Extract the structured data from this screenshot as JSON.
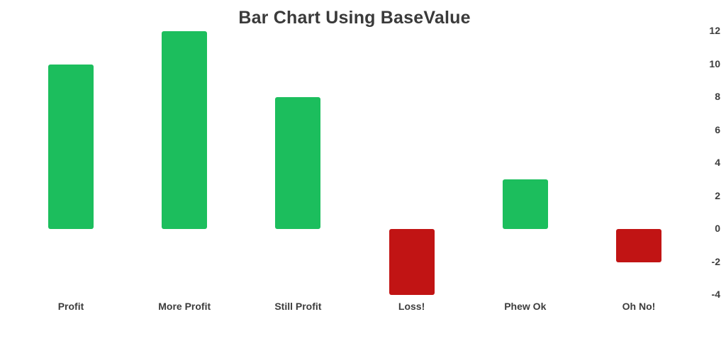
{
  "chart_data": {
    "type": "bar",
    "title": "Bar Chart Using BaseValue",
    "categories": [
      "Profit",
      "More Profit",
      "Still Profit",
      "Loss!",
      "Phew Ok",
      "Oh No!"
    ],
    "values": [
      10,
      12,
      8,
      -4,
      3,
      -2
    ],
    "base_value": 0,
    "xlabel": "",
    "ylabel": "",
    "ylim": [
      -4,
      12
    ],
    "yticks": [
      12,
      10,
      8,
      6,
      4,
      2,
      0,
      -2,
      -4
    ],
    "yaxis_position": "right",
    "grid": false,
    "legend_position": "none",
    "positive_color": "#1cbe5d",
    "negative_color": "#c11414",
    "text_color": "#3d3d3d",
    "title_color": "#3a3a3a",
    "background_color": "#ffffff"
  }
}
